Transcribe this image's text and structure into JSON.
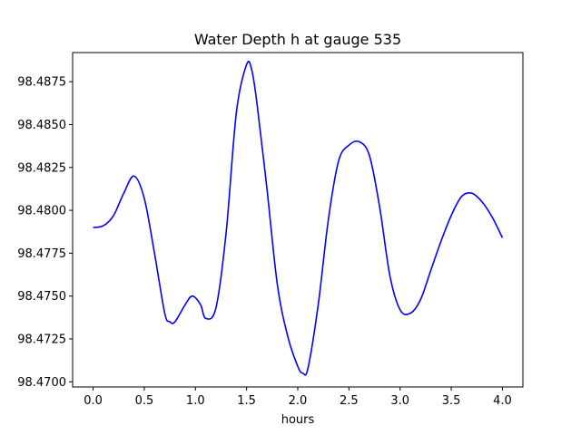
{
  "chart_data": {
    "type": "line",
    "title": "Water Depth h at gauge 535",
    "xlabel": "hours",
    "ylabel": "",
    "xlim": [
      -0.2,
      4.2
    ],
    "ylim": [
      98.4697,
      98.4892
    ],
    "grid": false,
    "legend": "none",
    "x_ticks": [
      0.0,
      0.5,
      1.0,
      1.5,
      2.0,
      2.5,
      3.0,
      3.5,
      4.0
    ],
    "x_tick_labels": [
      "0.0",
      "0.5",
      "1.0",
      "1.5",
      "2.0",
      "2.5",
      "3.0",
      "3.5",
      "4.0"
    ],
    "y_ticks": [
      98.47,
      98.4725,
      98.475,
      98.4775,
      98.48,
      98.4825,
      98.485,
      98.4875
    ],
    "y_tick_labels": [
      "98.4700",
      "98.4725",
      "98.4750",
      "98.4775",
      "98.4800",
      "98.4825",
      "98.4850",
      "98.4875"
    ],
    "series": [
      {
        "color": "#0000ff",
        "x": [
          0.0,
          0.1,
          0.2,
          0.3,
          0.4,
          0.5,
          0.6,
          0.7,
          0.75,
          0.8,
          0.9,
          0.97,
          1.05,
          1.1,
          1.2,
          1.3,
          1.4,
          1.5,
          1.55,
          1.6,
          1.7,
          1.8,
          1.9,
          2.0,
          2.05,
          2.1,
          2.2,
          2.3,
          2.4,
          2.5,
          2.6,
          2.7,
          2.8,
          2.9,
          3.0,
          3.1,
          3.2,
          3.3,
          3.4,
          3.5,
          3.6,
          3.7,
          3.8,
          3.9,
          4.0
        ],
        "y": [
          98.479,
          98.4791,
          98.4797,
          98.481,
          98.482,
          98.4807,
          98.4775,
          98.474,
          98.4735,
          98.4735,
          98.4745,
          98.475,
          98.4745,
          98.4737,
          98.4743,
          98.4787,
          98.4857,
          98.4885,
          98.4882,
          98.4863,
          98.4812,
          98.4757,
          98.4727,
          98.4709,
          98.4705,
          98.4708,
          98.4745,
          98.4795,
          98.4829,
          98.4838,
          98.484,
          98.4832,
          98.4802,
          98.4762,
          98.4742,
          98.474,
          98.4748,
          98.4765,
          98.4782,
          98.4797,
          98.4808,
          98.481,
          98.4805,
          98.4796,
          98.4784
        ]
      }
    ]
  }
}
